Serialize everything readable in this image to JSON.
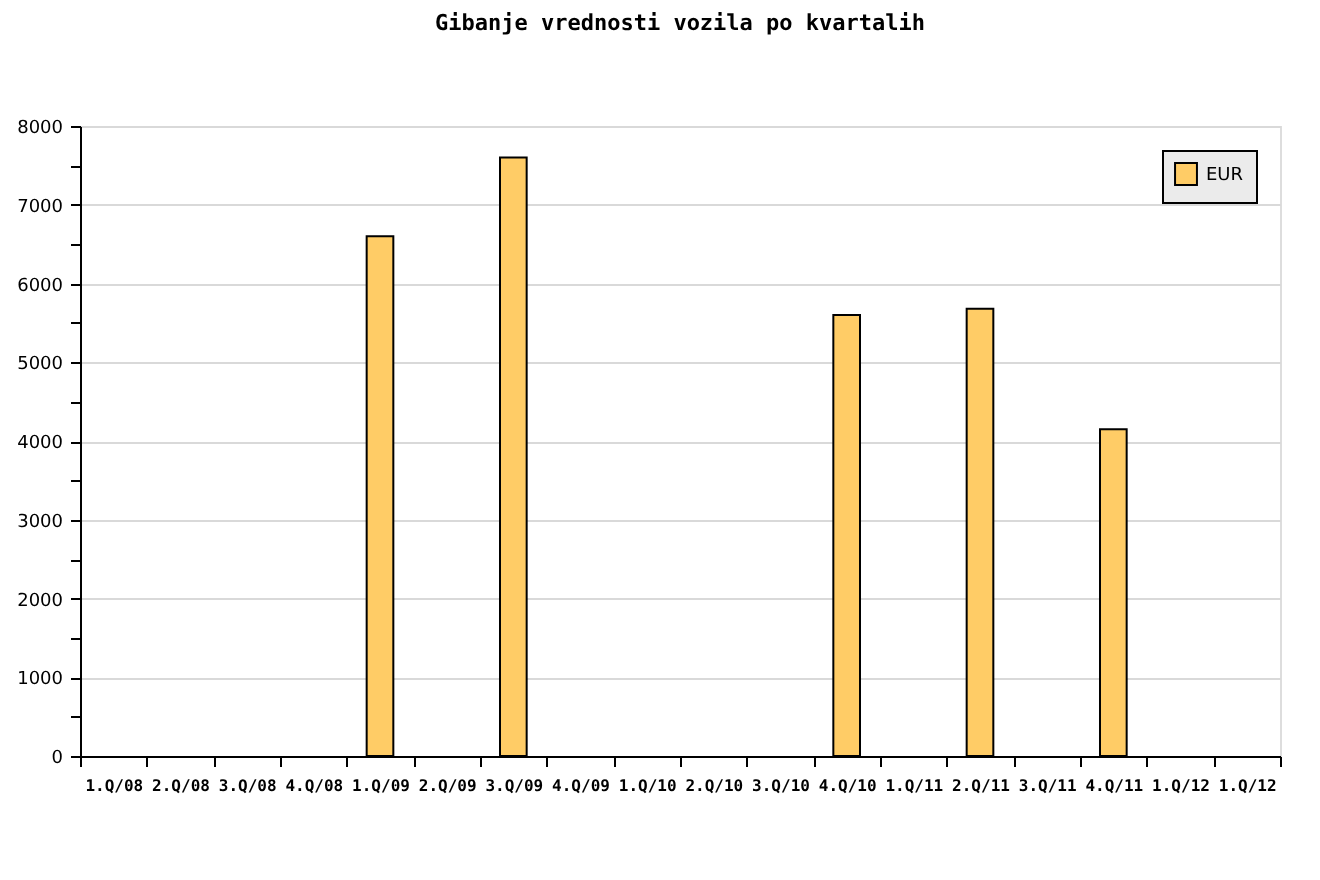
{
  "chart_data": {
    "type": "bar",
    "title": "Gibanje vrednosti vozila po kvartalih",
    "categories": [
      "1.Q/08",
      "2.Q/08",
      "3.Q/08",
      "4.Q/08",
      "1.Q/09",
      "2.Q/09",
      "3.Q/09",
      "4.Q/09",
      "1.Q/10",
      "2.Q/10",
      "3.Q/10",
      "4.Q/10",
      "1.Q/11",
      "2.Q/11",
      "3.Q/11",
      "4.Q/11",
      "1.Q/12",
      "1.Q/12"
    ],
    "series": [
      {
        "name": "EUR",
        "color": "#ffcc66",
        "values": [
          null,
          null,
          null,
          null,
          6600,
          null,
          7600,
          null,
          null,
          null,
          null,
          5600,
          null,
          5680,
          null,
          4150,
          null,
          null
        ]
      }
    ],
    "ylim": [
      0,
      8000
    ],
    "yticks": [
      0,
      {
        "value": 500,
        "label": null
      },
      1000,
      {
        "value": 1500,
        "label": null
      },
      2000,
      {
        "value": 2500,
        "label": null
      },
      3000,
      {
        "value": 3500,
        "label": null
      },
      4000,
      {
        "value": 4500,
        "label": null
      },
      5000,
      {
        "value": 5500,
        "label": null
      },
      6000,
      {
        "value": 6500,
        "label": null
      },
      7000,
      {
        "value": 7500,
        "label": null
      },
      8000
    ],
    "grid": "y",
    "legend": "top right"
  }
}
